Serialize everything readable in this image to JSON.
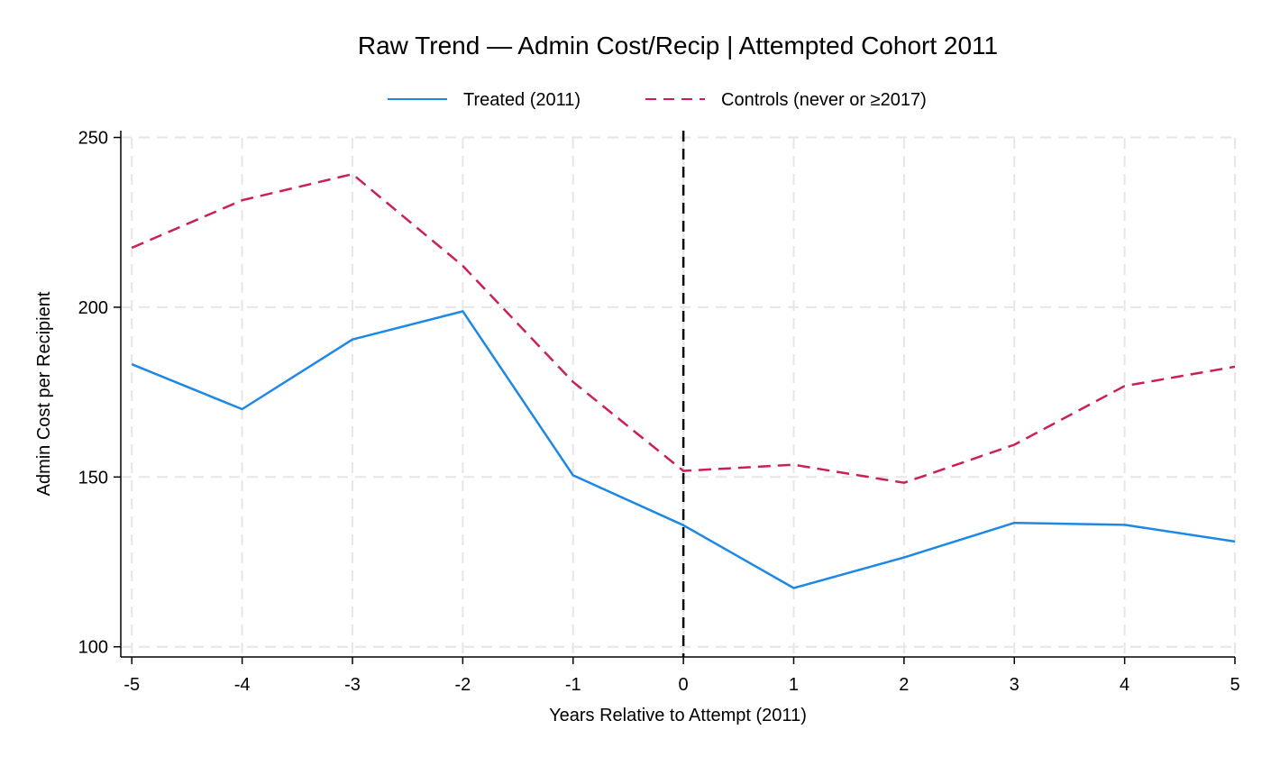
{
  "chart_data": {
    "type": "line",
    "title": "Raw Trend — Admin Cost/Recip | Attempted Cohort 2011",
    "xlabel": "Years Relative to Attempt (2011)",
    "ylabel": "Admin Cost per Recipient",
    "x": [
      -5,
      -4,
      -3,
      -2,
      -1,
      0,
      1,
      2,
      3,
      4,
      5
    ],
    "x_tick_labels": [
      "-5",
      "-4",
      "-3",
      "-2",
      "-1",
      "0",
      "1",
      "2",
      "3",
      "4",
      "5"
    ],
    "y_ticks": [
      100,
      150,
      200,
      250
    ],
    "y_tick_labels": [
      "100",
      "150",
      "200",
      "250"
    ],
    "xlim": [
      -5.1,
      5.0
    ],
    "ylim": [
      97,
      252
    ],
    "grid": true,
    "legend_position": "top",
    "reference_line": {
      "x": 0,
      "style": "dashed",
      "color": "#000000"
    },
    "series": [
      {
        "name": "Treated (2011)",
        "color": "#1e88e5",
        "style": "solid",
        "values": [
          183.2,
          170.0,
          190.5,
          198.8,
          150.5,
          135.8,
          117.3,
          126.3,
          136.5,
          135.9,
          131.0
        ]
      },
      {
        "name": "Controls (never or ≥2017)",
        "color": "#cc1f5a",
        "style": "dashed",
        "values": [
          217.5,
          231.5,
          239.2,
          212.2,
          178.0,
          151.8,
          153.6,
          148.3,
          159.5,
          176.8,
          182.5
        ]
      }
    ]
  }
}
